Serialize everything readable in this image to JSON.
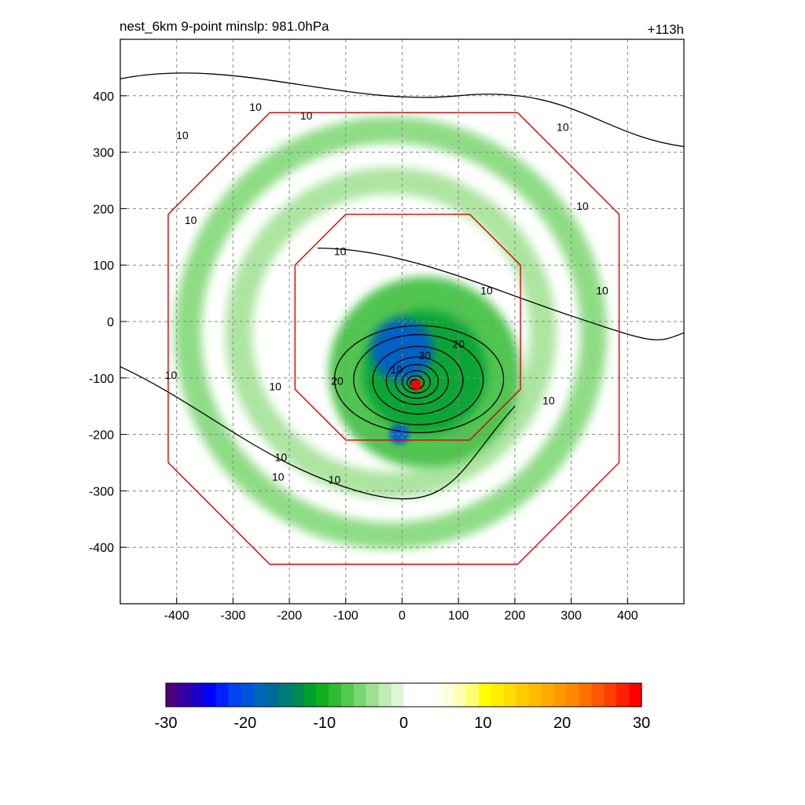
{
  "header": {
    "title": "nest_6km  9-point minslp: 981.0hPa",
    "forecast_hour": "+113h"
  },
  "chart_data": {
    "type": "heatmap",
    "title": "nest_6km  9-point minslp: 981.0hPa",
    "annotation": "+113h",
    "xlim": [
      -500,
      500
    ],
    "ylim": [
      -500,
      500
    ],
    "x_ticks": [
      -400,
      -300,
      -200,
      -100,
      0,
      100,
      200,
      300,
      400
    ],
    "y_ticks": [
      400,
      300,
      200,
      100,
      0,
      -100,
      -200,
      -300,
      -400
    ],
    "grid": true,
    "grid_style": "dashed",
    "storm_center": {
      "x": 25,
      "y": -112
    },
    "shading": {
      "field_range": [
        -30,
        30
      ],
      "features": [
        {
          "type": "ring",
          "cx": -20,
          "cy": -20,
          "r": 360,
          "level": -6
        },
        {
          "type": "ring",
          "cx": -20,
          "cy": -20,
          "r": 270,
          "level": -4
        },
        {
          "type": "blob",
          "cx": 40,
          "cy": -90,
          "r": 170,
          "level": -8
        },
        {
          "type": "blob",
          "cx": 40,
          "cy": -90,
          "r": 110,
          "level": -12
        },
        {
          "type": "blob",
          "cx": 0,
          "cy": -50,
          "r": 55,
          "level": -20
        },
        {
          "type": "blob",
          "cx": -5,
          "cy": -200,
          "r": 18,
          "level": -20
        },
        {
          "type": "blob",
          "cx": 25,
          "cy": -112,
          "r": 10,
          "level": 28
        }
      ]
    },
    "contours": {
      "levels": [
        10,
        20,
        30
      ],
      "labels": [
        {
          "text": "10",
          "x": -260,
          "y": 380
        },
        {
          "text": "10",
          "x": -170,
          "y": 365
        },
        {
          "text": "10",
          "x": -390,
          "y": 330
        },
        {
          "text": "10",
          "x": 285,
          "y": 345
        },
        {
          "text": "10",
          "x": -375,
          "y": 180
        },
        {
          "text": "10",
          "x": 320,
          "y": 205
        },
        {
          "text": "10",
          "x": -110,
          "y": 125
        },
        {
          "text": "10",
          "x": 150,
          "y": 55
        },
        {
          "text": "10",
          "x": 355,
          "y": 55
        },
        {
          "text": "10",
          "x": -410,
          "y": -95
        },
        {
          "text": "10",
          "x": -225,
          "y": -115
        },
        {
          "text": "10",
          "x": 260,
          "y": -140
        },
        {
          "text": "10",
          "x": -215,
          "y": -240
        },
        {
          "text": "10",
          "x": -220,
          "y": -275
        },
        {
          "text": "10",
          "x": -120,
          "y": -280
        },
        {
          "text": "20",
          "x": 100,
          "y": -40
        },
        {
          "text": "30",
          "x": 40,
          "y": -60
        },
        {
          "text": "20",
          "x": -115,
          "y": -105
        },
        {
          "text": "10",
          "x": -10,
          "y": -85
        }
      ]
    },
    "nest_boundaries": [
      {
        "name": "outer",
        "half_width": 400,
        "center": [
          -15,
          -30
        ]
      },
      {
        "name": "inner",
        "half_width": 200,
        "center": [
          10,
          -10
        ]
      }
    ]
  },
  "colorbar": {
    "min": -30,
    "max": 30,
    "ticks": [
      -30,
      -20,
      -10,
      0,
      10,
      20,
      30
    ],
    "colors": [
      "#4b0082",
      "#3300a8",
      "#1a00cc",
      "#0000ff",
      "#0022ff",
      "#0044ee",
      "#0055dd",
      "#0066bb",
      "#006a99",
      "#007a7a",
      "#008855",
      "#00a030",
      "#10b020",
      "#30bb30",
      "#55c850",
      "#7ad670",
      "#9ee090",
      "#c0ecb8",
      "#ddf5d6",
      "#ffffff",
      "#ffffff",
      "#ffffff",
      "#ffffe0",
      "#ffffb0",
      "#ffff70",
      "#ffff00",
      "#ffee00",
      "#ffdd00",
      "#ffcc00",
      "#ffbb00",
      "#ffaa00",
      "#ff9900",
      "#ff8800",
      "#ff7000",
      "#ff5800",
      "#ff4000",
      "#ff2000",
      "#ff0000"
    ]
  }
}
